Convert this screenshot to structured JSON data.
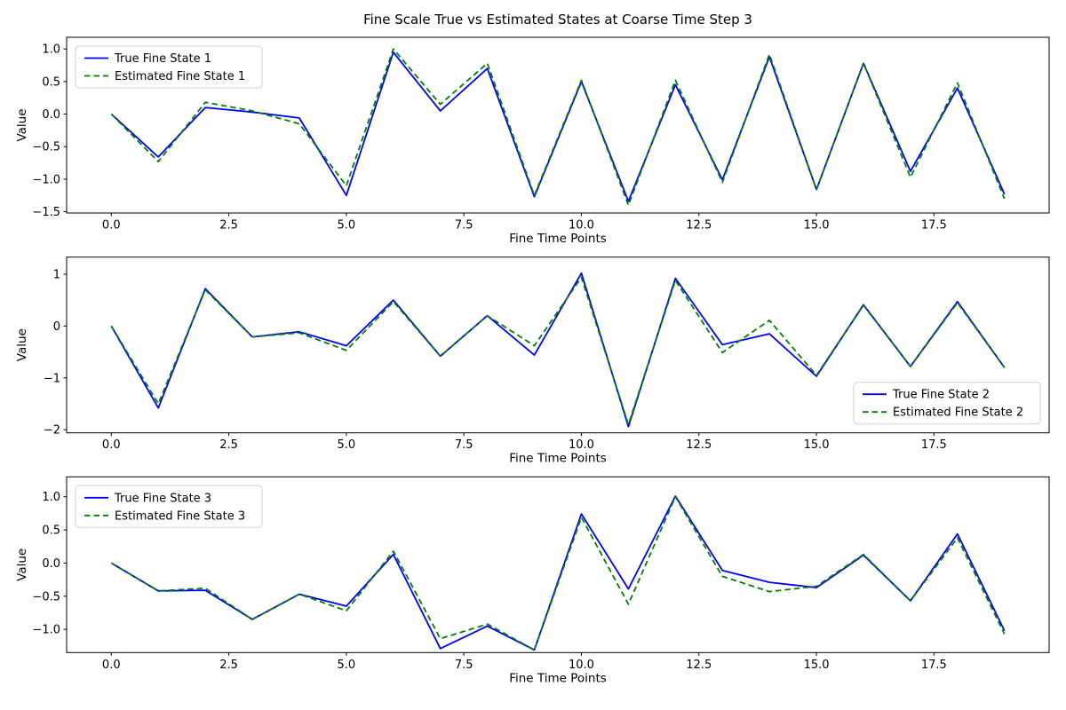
{
  "figure": {
    "title": "Fine Scale True vs Estimated States at Coarse Time Step 3",
    "background_color": "#ffffff",
    "axis_color": "#000000",
    "true_line_color": "#0000ff",
    "estimated_line_color": "#008000",
    "legend_border_color": "#cfcfcf"
  },
  "chart_data": [
    {
      "type": "line",
      "title": "",
      "xlabel": "Fine Time Points",
      "ylabel": "Value",
      "x": [
        0,
        1,
        2,
        3,
        4,
        5,
        6,
        7,
        8,
        9,
        10,
        11,
        12,
        13,
        14,
        15,
        16,
        17,
        18,
        19
      ],
      "series": [
        {
          "name": "True Fine State 1",
          "color": "#0000ff",
          "style": "solid",
          "values": [
            0.0,
            -0.66,
            0.1,
            0.03,
            -0.06,
            -1.25,
            0.95,
            0.05,
            0.7,
            -1.27,
            0.5,
            -1.34,
            0.45,
            -1.01,
            0.88,
            -1.16,
            0.78,
            -0.88,
            0.4,
            -1.23
          ]
        },
        {
          "name": "Estimated Fine State 1",
          "color": "#008000",
          "style": "dashed",
          "values": [
            0.0,
            -0.73,
            0.18,
            0.05,
            -0.15,
            -1.1,
            1.0,
            0.15,
            0.78,
            -1.25,
            0.52,
            -1.4,
            0.52,
            -1.05,
            0.92,
            -1.16,
            0.78,
            -0.97,
            0.48,
            -1.3
          ]
        }
      ],
      "xlim": [
        -0.95,
        19.95
      ],
      "ylim": [
        -1.52,
        1.18
      ],
      "xticks": {
        "values": [
          0,
          2.5,
          5,
          7.5,
          10,
          12.5,
          15,
          17.5
        ],
        "labels": [
          "0.0",
          "2.5",
          "5.0",
          "7.5",
          "10.0",
          "12.5",
          "15.0",
          "17.5"
        ]
      },
      "yticks": {
        "values": [
          1.0,
          0.5,
          0.0,
          -0.5,
          -1.0,
          -1.5
        ],
        "labels": [
          "1.0",
          "0.5",
          "0.0",
          "−0.5",
          "−1.0",
          "−1.5"
        ]
      },
      "legend_position": "upper-left",
      "grid": false
    },
    {
      "type": "line",
      "title": "",
      "xlabel": "Fine Time Points",
      "ylabel": "Value",
      "x": [
        0,
        1,
        2,
        3,
        4,
        5,
        6,
        7,
        8,
        9,
        10,
        11,
        12,
        13,
        14,
        15,
        16,
        17,
        18,
        19
      ],
      "series": [
        {
          "name": "True Fine State 2",
          "color": "#0000ff",
          "style": "solid",
          "values": [
            0.0,
            -1.58,
            0.72,
            -0.21,
            -0.11,
            -0.38,
            0.5,
            -0.58,
            0.2,
            -0.56,
            1.02,
            -1.94,
            0.92,
            -0.36,
            -0.15,
            -0.97,
            0.41,
            -0.78,
            0.47,
            -0.8
          ]
        },
        {
          "name": "Estimated Fine State 2",
          "color": "#008000",
          "style": "dashed",
          "values": [
            0.0,
            -1.5,
            0.7,
            -0.21,
            -0.13,
            -0.47,
            0.47,
            -0.58,
            0.2,
            -0.38,
            0.94,
            -1.9,
            0.88,
            -0.51,
            0.11,
            -0.95,
            0.4,
            -0.78,
            0.45,
            -0.8
          ]
        }
      ],
      "xlim": [
        -0.95,
        19.95
      ],
      "ylim": [
        -2.06,
        1.33
      ],
      "xticks": {
        "values": [
          0,
          2.5,
          5,
          7.5,
          10,
          12.5,
          15,
          17.5
        ],
        "labels": [
          "0.0",
          "2.5",
          "5.0",
          "7.5",
          "10.0",
          "12.5",
          "15.0",
          "17.5"
        ]
      },
      "yticks": {
        "values": [
          1,
          0,
          -1,
          -2
        ],
        "labels": [
          "1",
          "0",
          "−1",
          "−2"
        ]
      },
      "legend_position": "lower-right",
      "grid": false
    },
    {
      "type": "line",
      "title": "",
      "xlabel": "Fine Time Points",
      "ylabel": "Value",
      "x": [
        0,
        1,
        2,
        3,
        4,
        5,
        6,
        7,
        8,
        9,
        10,
        11,
        12,
        13,
        14,
        15,
        16,
        17,
        18,
        19
      ],
      "series": [
        {
          "name": "True Fine State 3",
          "color": "#0000ff",
          "style": "solid",
          "values": [
            0.0,
            -0.42,
            -0.41,
            -0.85,
            -0.47,
            -0.65,
            0.13,
            -1.29,
            -0.95,
            -1.31,
            0.74,
            -0.39,
            1.01,
            -0.11,
            -0.29,
            -0.37,
            0.12,
            -0.57,
            0.44,
            -1.02
          ]
        },
        {
          "name": "Estimated Fine State 3",
          "color": "#008000",
          "style": "dashed",
          "values": [
            0.0,
            -0.42,
            -0.38,
            -0.85,
            -0.47,
            -0.72,
            0.18,
            -1.14,
            -0.92,
            -1.31,
            0.69,
            -0.62,
            1.0,
            -0.2,
            -0.43,
            -0.35,
            0.13,
            -0.57,
            0.38,
            -1.07
          ]
        }
      ],
      "xlim": [
        -0.95,
        19.95
      ],
      "ylim": [
        -1.35,
        1.3
      ],
      "xticks": {
        "values": [
          0,
          2.5,
          5,
          7.5,
          10,
          12.5,
          15,
          17.5
        ],
        "labels": [
          "0.0",
          "2.5",
          "5.0",
          "7.5",
          "10.0",
          "12.5",
          "15.0",
          "17.5"
        ]
      },
      "yticks": {
        "values": [
          1.0,
          0.5,
          0.0,
          -0.5,
          -1.0
        ],
        "labels": [
          "1.0",
          "0.5",
          "0.0",
          "−0.5",
          "−1.0"
        ]
      },
      "legend_position": "upper-left",
      "grid": false
    }
  ]
}
